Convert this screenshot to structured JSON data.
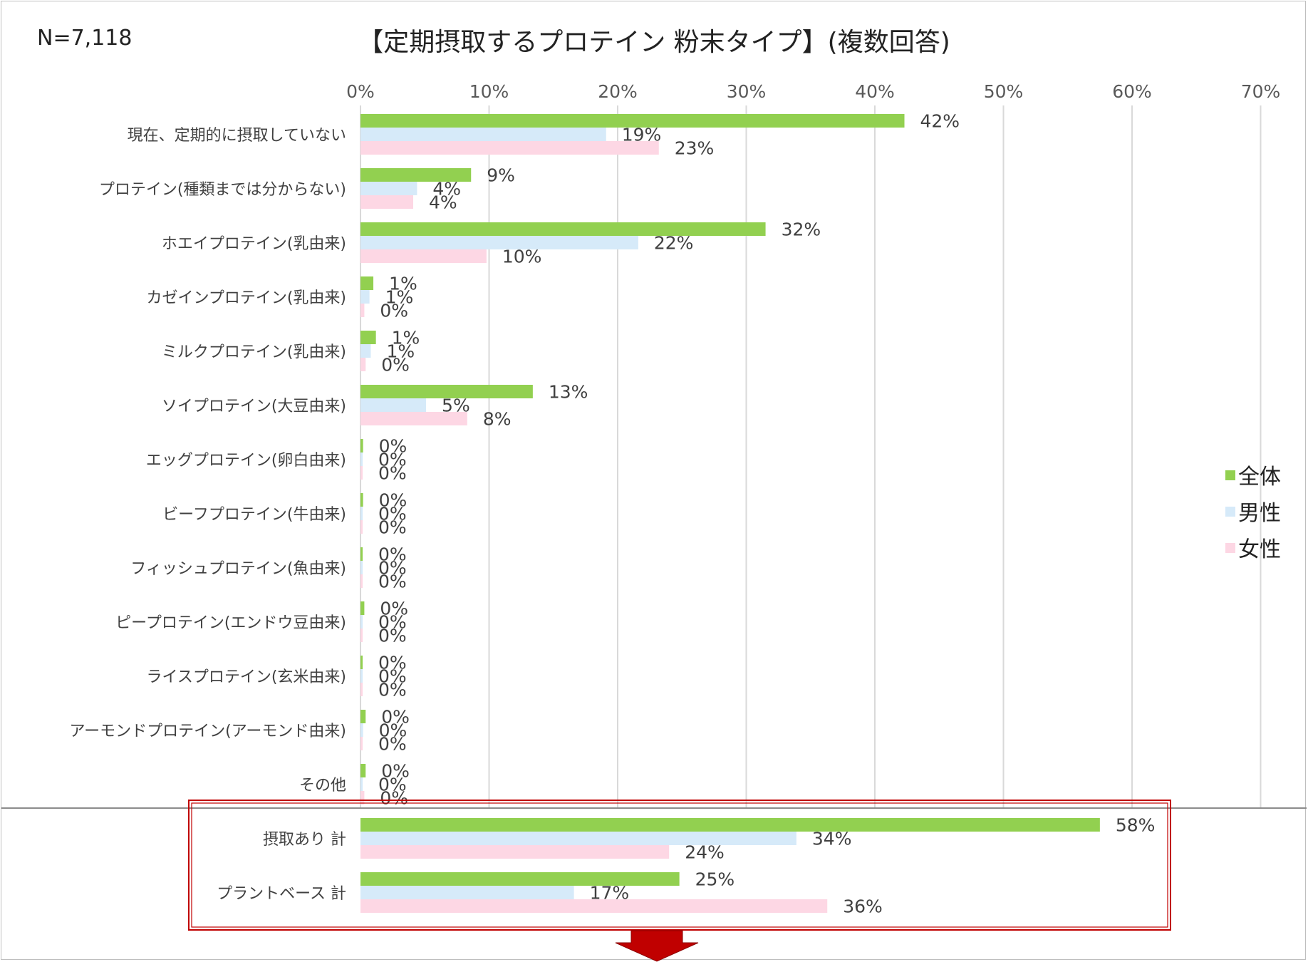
{
  "n_label": "N=7,118",
  "chart_data": {
    "type": "bar",
    "orientation": "horizontal",
    "title": "【定期摂取するプロテイン 粉末タイプ】(複数回答)",
    "xlim": [
      0,
      70
    ],
    "xticks": [
      "0%",
      "10%",
      "20%",
      "30%",
      "40%",
      "50%",
      "60%",
      "70%"
    ],
    "grid": true,
    "legend_position": "right",
    "categories": [
      "現在、定期的に摂取していない",
      "プロテイン(種類までは分からない)",
      "ホエイプロテイン(乳由来)",
      "カゼインプロテイン(乳由来)",
      "ミルクプロテイン(乳由来)",
      "ソイプロテイン(大豆由来)",
      "エッグプロテイン(卵白由来)",
      "ビーフプロテイン(牛由来)",
      "フィッシュプロテイン(魚由来)",
      "ピープロテイン(エンドウ豆由来)",
      "ライスプロテイン(玄米由来)",
      "アーモンドプロテイン(アーモンド由来)",
      "その他",
      "摂取あり 計",
      "プラントベース 計"
    ],
    "series": [
      {
        "name": "全体",
        "color": "#92d050",
        "values": [
          42.3,
          8.6,
          31.5,
          1.0,
          1.2,
          13.4,
          0.2,
          0.2,
          0.1,
          0.3,
          0.1,
          0.4,
          0.4,
          57.5,
          24.8
        ],
        "labels": [
          "42%",
          "9%",
          "32%",
          "1%",
          "1%",
          "13%",
          "0%",
          "0%",
          "0%",
          "0%",
          "0%",
          "0%",
          "0%",
          "58%",
          "25%"
        ]
      },
      {
        "name": "男性",
        "color": "#d6eaf9",
        "values": [
          19.1,
          4.4,
          21.6,
          0.7,
          0.8,
          5.1,
          0.05,
          0.05,
          0.05,
          0.05,
          0.05,
          0.2,
          0.05,
          33.9,
          16.6
        ],
        "labels": [
          "19%",
          "4%",
          "22%",
          "1%",
          "1%",
          "5%",
          "0%",
          "0%",
          "0%",
          "0%",
          "0%",
          "0%",
          "0%",
          "34%",
          "17%"
        ]
      },
      {
        "name": "女性",
        "color": "#fdd7e4",
        "values": [
          23.2,
          4.1,
          9.8,
          0.3,
          0.4,
          8.3,
          0.05,
          0.05,
          0.05,
          0.1,
          0.05,
          0.05,
          0.3,
          24.0,
          36.3
        ],
        "labels": [
          "23%",
          "4%",
          "10%",
          "0%",
          "0%",
          "8%",
          "0%",
          "0%",
          "0%",
          "0%",
          "0%",
          "0%",
          "0%",
          "24%",
          "36%"
        ]
      }
    ],
    "highlighted_categories": [
      "摂取あり 計",
      "プラントベース 計"
    ]
  }
}
